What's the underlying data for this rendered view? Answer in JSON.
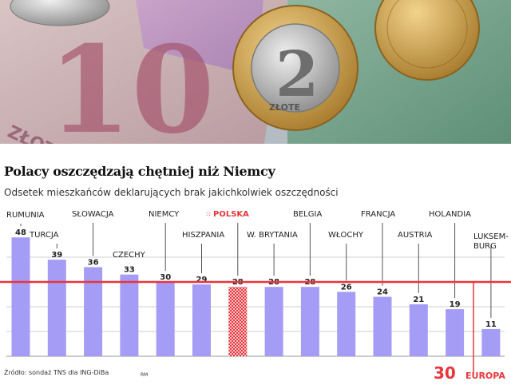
{
  "chart_data": {
    "type": "bar",
    "title": "Polacy oszczędzają chętniej niż Niemcy",
    "subtitle": "Odsetek mieszkańców deklarujących brak jakichkolwiek oszczędności",
    "categories": [
      "RUMUNIA",
      "TURCJA",
      "SŁOWACJA",
      "CZECHY",
      "NIEMCY",
      "HISZPANIA",
      "POLSKA",
      "W. BRYTANIA",
      "BELGIA",
      "WŁOCHY",
      "FRANCJA",
      "AUSTRIA",
      "HOLANDIA",
      "LUKSEM-BURG"
    ],
    "label_lines": [
      [
        "RUMUNIA"
      ],
      [
        "TURCJA"
      ],
      [
        "SŁOWACJA"
      ],
      [
        "CZECHY"
      ],
      [
        "NIEMCY"
      ],
      [
        "HISZPANIA"
      ],
      [
        "POLSKA"
      ],
      [
        "W. BRYTANIA"
      ],
      [
        "BELGIA"
      ],
      [
        "WŁOCHY"
      ],
      [
        "FRANCJA"
      ],
      [
        "AUSTRIA"
      ],
      [
        "HOLANDIA"
      ],
      [
        "LUKSEM-",
        "BURG"
      ]
    ],
    "values": [
      48,
      39,
      36,
      33,
      30,
      29,
      28,
      28,
      28,
      26,
      24,
      21,
      19,
      11
    ],
    "highlight": "POLSKA",
    "reference_line": {
      "value": 30,
      "label": "30",
      "name": "EUROPA"
    },
    "grid": true,
    "colors": {
      "bar": "#a59cf5",
      "highlight": "#e8363d",
      "reference": "#e8363d",
      "text": "#222222"
    }
  },
  "source": "Źródło: sondaż TNS dla ING-DiBa",
  "credit": "RM"
}
